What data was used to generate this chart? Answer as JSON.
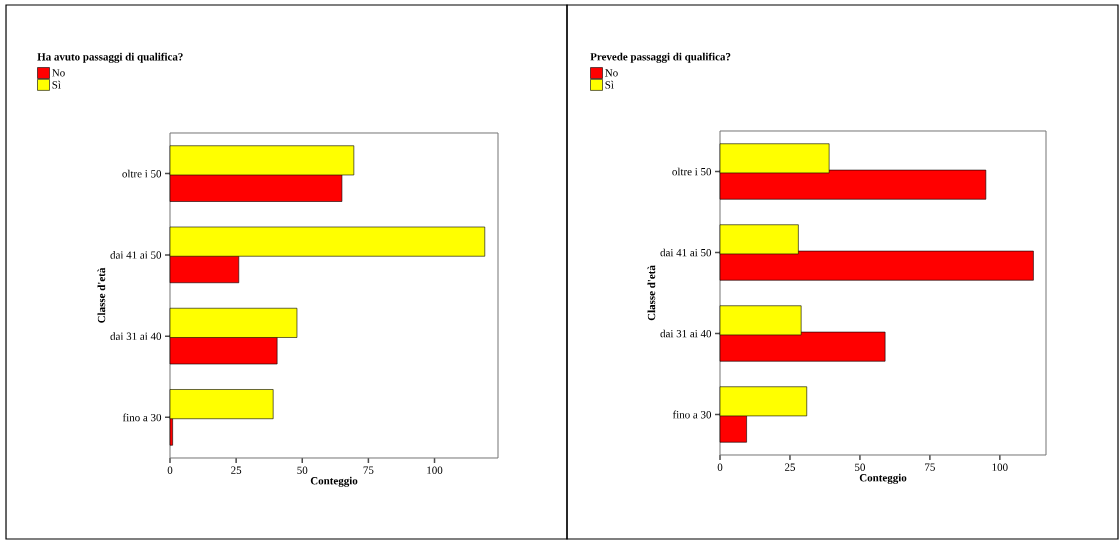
{
  "chart_data": [
    {
      "type": "bar",
      "orientation": "horizontal",
      "legend_title": "Ha avuto passaggi di qualifica?",
      "legend": "top left",
      "xlabel": "Conteggio",
      "ylabel": "Classe d'età",
      "categories": [
        "oltre i 50",
        "dai 41 ai 50",
        "dai 31 ai 40",
        "fino a 30"
      ],
      "series": [
        {
          "name": "No",
          "color": "#ff0000",
          "values": [
            65,
            26,
            40.5,
            1
          ]
        },
        {
          "name": "Sì",
          "color": "#ffff00",
          "values": [
            69.5,
            119,
            48,
            39
          ]
        }
      ],
      "xlim": [
        0,
        124
      ],
      "xticks": [
        0,
        25,
        50,
        75,
        100
      ]
    },
    {
      "type": "bar",
      "orientation": "horizontal",
      "legend_title": "Prevede passaggi di qualifica?",
      "legend": "top left",
      "xlabel": "Conteggio",
      "ylabel": "Classe d'età",
      "categories": [
        "oltre i 50",
        "dai 41 ai 50",
        "dai 31 ai 40",
        "fino a 30"
      ],
      "series": [
        {
          "name": "No",
          "color": "#ff0000",
          "values": [
            95,
            112,
            59,
            9.5
          ]
        },
        {
          "name": "Sì",
          "color": "#ffff00",
          "values": [
            39,
            28,
            29,
            31
          ]
        }
      ],
      "xlim": [
        0,
        116.5
      ],
      "xticks": [
        0,
        25,
        50,
        75,
        100
      ]
    }
  ]
}
